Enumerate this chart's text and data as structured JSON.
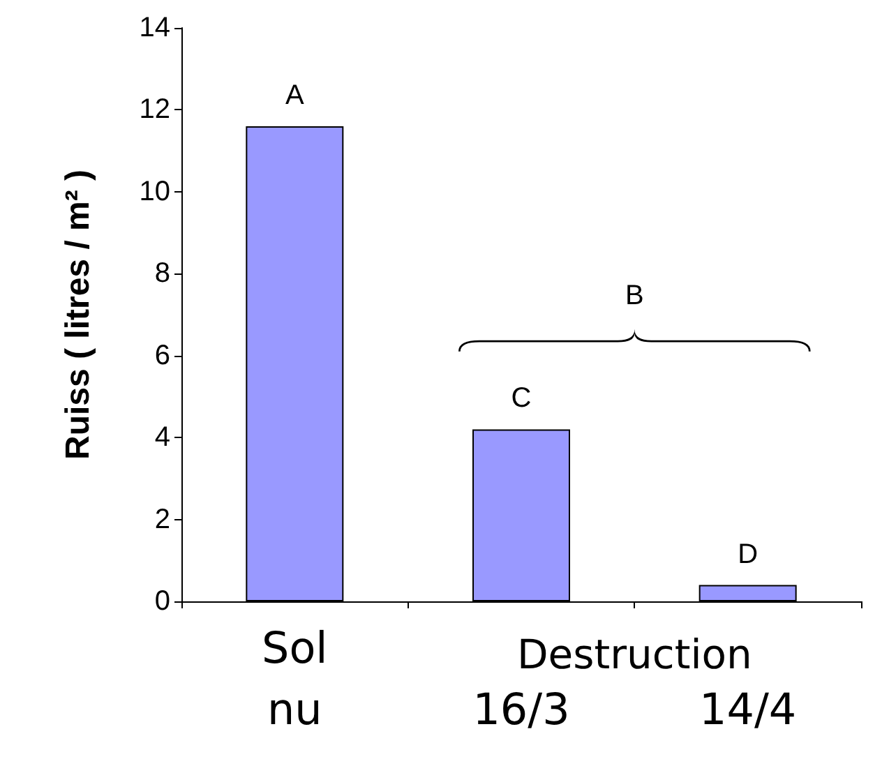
{
  "chart_data": {
    "type": "bar",
    "ylabel": "Ruiss ( litres / m² )",
    "categories": [
      "Sol nu",
      "16/3",
      "14/4"
    ],
    "values": [
      11.6,
      4.2,
      0.4
    ],
    "color": "#9999ff",
    "ylim": [
      0,
      14
    ],
    "yticks": [
      0,
      2,
      4,
      6,
      8,
      10,
      12,
      14
    ],
    "grid": false,
    "annotations": [
      {
        "text": "A",
        "x": "Sol nu",
        "y": 11.6
      },
      {
        "text": "C",
        "x": "16/3",
        "y": 4.2
      },
      {
        "text": "D",
        "x": "14/4",
        "y": 0.4
      },
      "B",
      "Destruction"
    ]
  }
}
